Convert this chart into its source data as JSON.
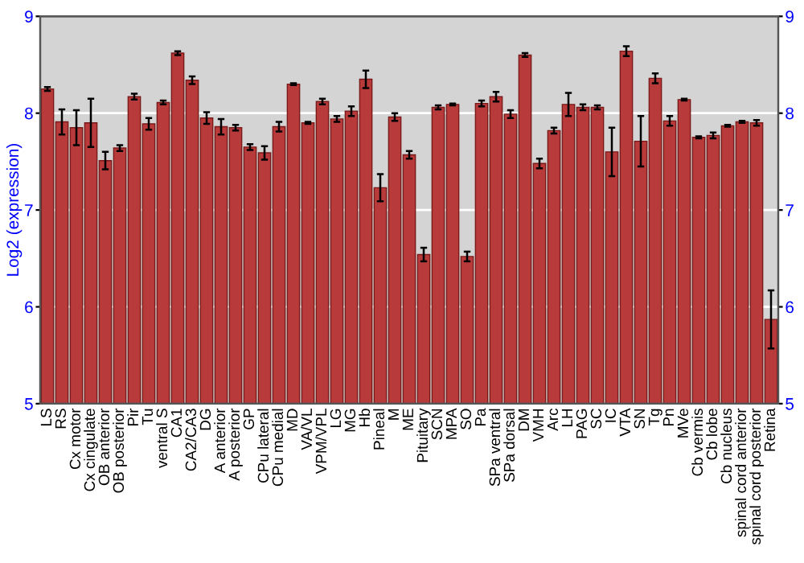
{
  "chart_data": {
    "type": "bar",
    "ylabel": "Log2 (expression)",
    "categories": [
      "LS",
      "RS",
      "Cx motor",
      "Cx cingulate",
      "OB anterior",
      "OB posterior",
      "Pir",
      "Tu",
      "ventral S",
      "CA1",
      "CA2/CA3",
      "DG",
      "A anterior",
      "A posterior",
      "GP",
      "CPu lateral",
      "CPu medial",
      "MD",
      "VA/VL",
      "VPM/VPL",
      "LG",
      "MG",
      "Hb",
      "Pineal",
      "M",
      "ME",
      "Pituitary",
      "SCN",
      "MPA",
      "SO",
      "Pa",
      "SPa ventral",
      "SPa dorsal",
      "DM",
      "VMH",
      "Arc",
      "LH",
      "PAG",
      "SC",
      "IC",
      "VTA",
      "SN",
      "Tg",
      "Pn",
      "MVe",
      "Cb vermis",
      "Cb lobe",
      "Cb nucleus",
      "spinal cord anterior",
      "spinal cord posterior",
      "Retina"
    ],
    "values": [
      8.25,
      7.91,
      7.85,
      7.9,
      7.51,
      7.64,
      8.17,
      7.89,
      8.11,
      8.62,
      8.34,
      7.95,
      7.86,
      7.85,
      7.65,
      7.59,
      7.86,
      8.3,
      7.9,
      8.12,
      7.94,
      8.02,
      8.35,
      7.23,
      7.96,
      7.57,
      6.54,
      8.06,
      8.09,
      6.52,
      8.1,
      8.17,
      7.99,
      8.6,
      7.48,
      7.82,
      8.09,
      8.06,
      8.06,
      7.6,
      8.64,
      7.71,
      8.36,
      7.92,
      8.14,
      7.75,
      7.77,
      7.87,
      7.91,
      7.9,
      5.87
    ],
    "errors": [
      0.02,
      0.13,
      0.18,
      0.25,
      0.09,
      0.03,
      0.03,
      0.06,
      0.02,
      0.02,
      0.04,
      0.06,
      0.08,
      0.03,
      0.03,
      0.07,
      0.05,
      0.01,
      0.01,
      0.03,
      0.03,
      0.05,
      0.09,
      0.14,
      0.04,
      0.04,
      0.07,
      0.02,
      0.01,
      0.05,
      0.03,
      0.05,
      0.04,
      0.02,
      0.05,
      0.03,
      0.12,
      0.03,
      0.02,
      0.25,
      0.05,
      0.26,
      0.05,
      0.05,
      0.01,
      0.01,
      0.03,
      0.01,
      0.01,
      0.03,
      0.3
    ],
    "color": "#b83a3a",
    "ylim": [
      5,
      9
    ],
    "yticks": [
      5,
      6,
      7,
      8,
      9
    ],
    "y2lim": [
      5,
      9
    ],
    "y2ticks": [
      5,
      6,
      7,
      8,
      9
    ],
    "grid": "y"
  }
}
